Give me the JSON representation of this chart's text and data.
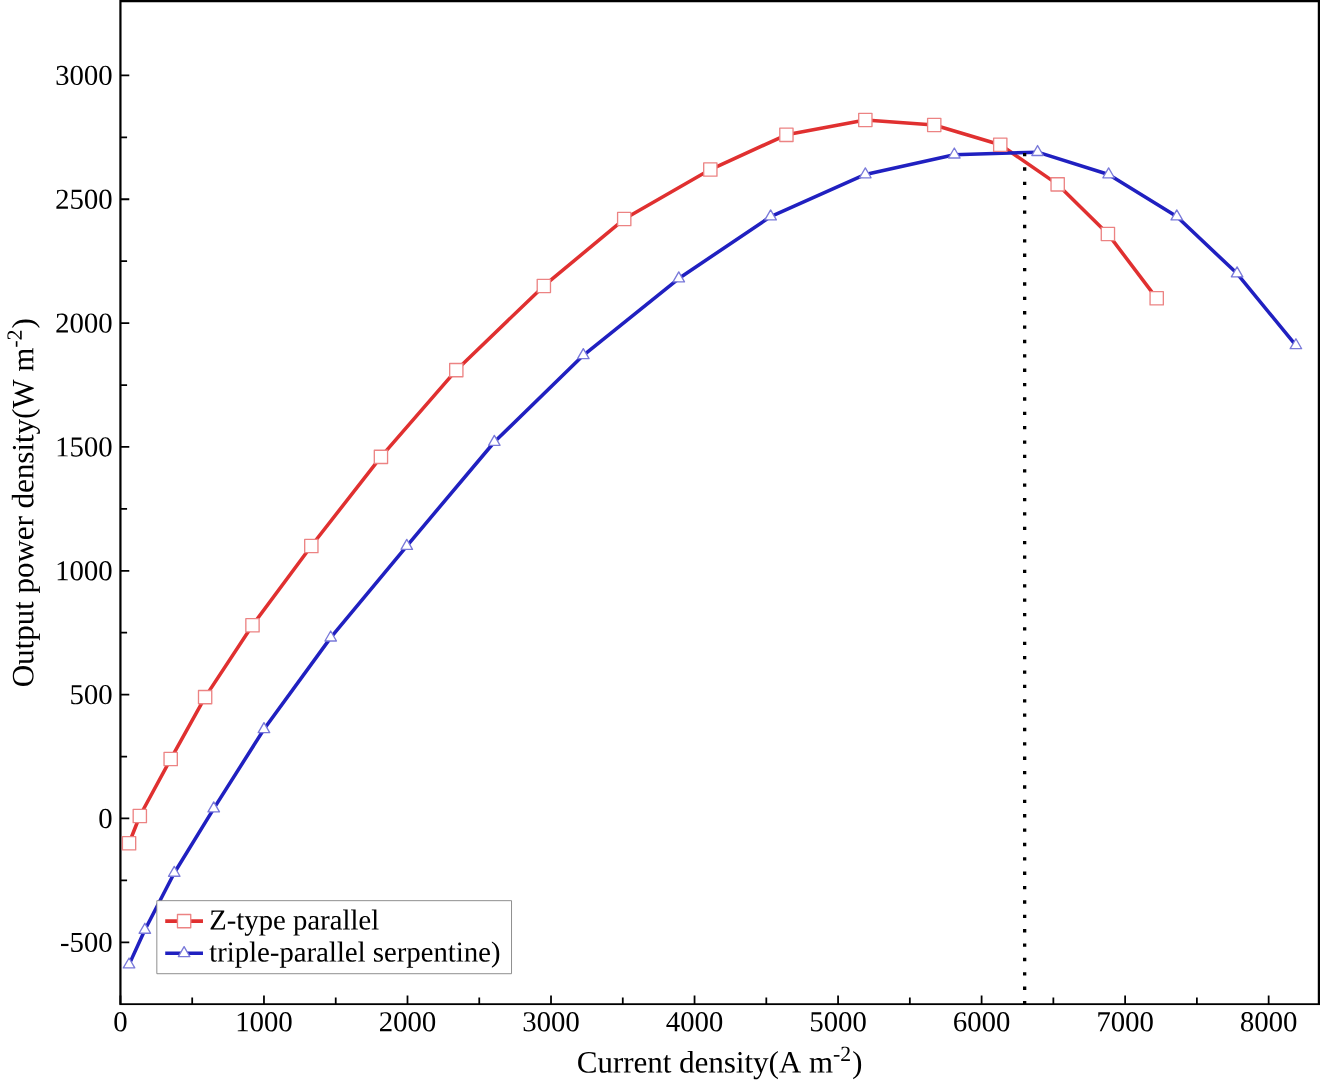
{
  "chart_data": {
    "type": "line",
    "xlabel": "Current density(A m$^{-2}$)",
    "ylabel": "Output power density(W m$^{-2}$)",
    "xlim": [
      0,
      8350
    ],
    "ylim": [
      -750,
      3300
    ],
    "xticks": [
      0,
      1000,
      2000,
      3000,
      4000,
      5000,
      6000,
      7000,
      8000
    ],
    "yticks": [
      -500,
      0,
      500,
      1000,
      1500,
      2000,
      2500,
      3000
    ],
    "legend": "bottom left",
    "grid": false,
    "series": [
      {
        "name": "Z-type parallel",
        "color": "#e03030",
        "marker": "square",
        "x": [
          60,
          135,
          350,
          590,
          920,
          1330,
          1815,
          2340,
          2950,
          3510,
          4110,
          4640,
          5190,
          5670,
          6130,
          6530,
          6880,
          7220
        ],
        "values": [
          -100,
          10,
          240,
          490,
          780,
          1100,
          1460,
          1810,
          2150,
          2420,
          2620,
          2760,
          2820,
          2800,
          2720,
          2560,
          2360,
          2100
        ]
      },
      {
        "name": "triple-parallel serpentine)",
        "color": "#2020c0",
        "marker": "triangle",
        "x": [
          60,
          170,
          375,
          650,
          1000,
          1465,
          1995,
          2605,
          3225,
          3890,
          4530,
          5190,
          5810,
          6390,
          6885,
          7360,
          7780,
          8190
        ],
        "values": [
          -590,
          -450,
          -220,
          40,
          360,
          730,
          1100,
          1520,
          1870,
          2180,
          2430,
          2600,
          2680,
          2690,
          2600,
          2430,
          2200,
          1910
        ]
      }
    ],
    "ref_lines": [
      {
        "axis": "x",
        "value": 6300,
        "color": "#000000",
        "line_style": "dotted"
      }
    ]
  }
}
